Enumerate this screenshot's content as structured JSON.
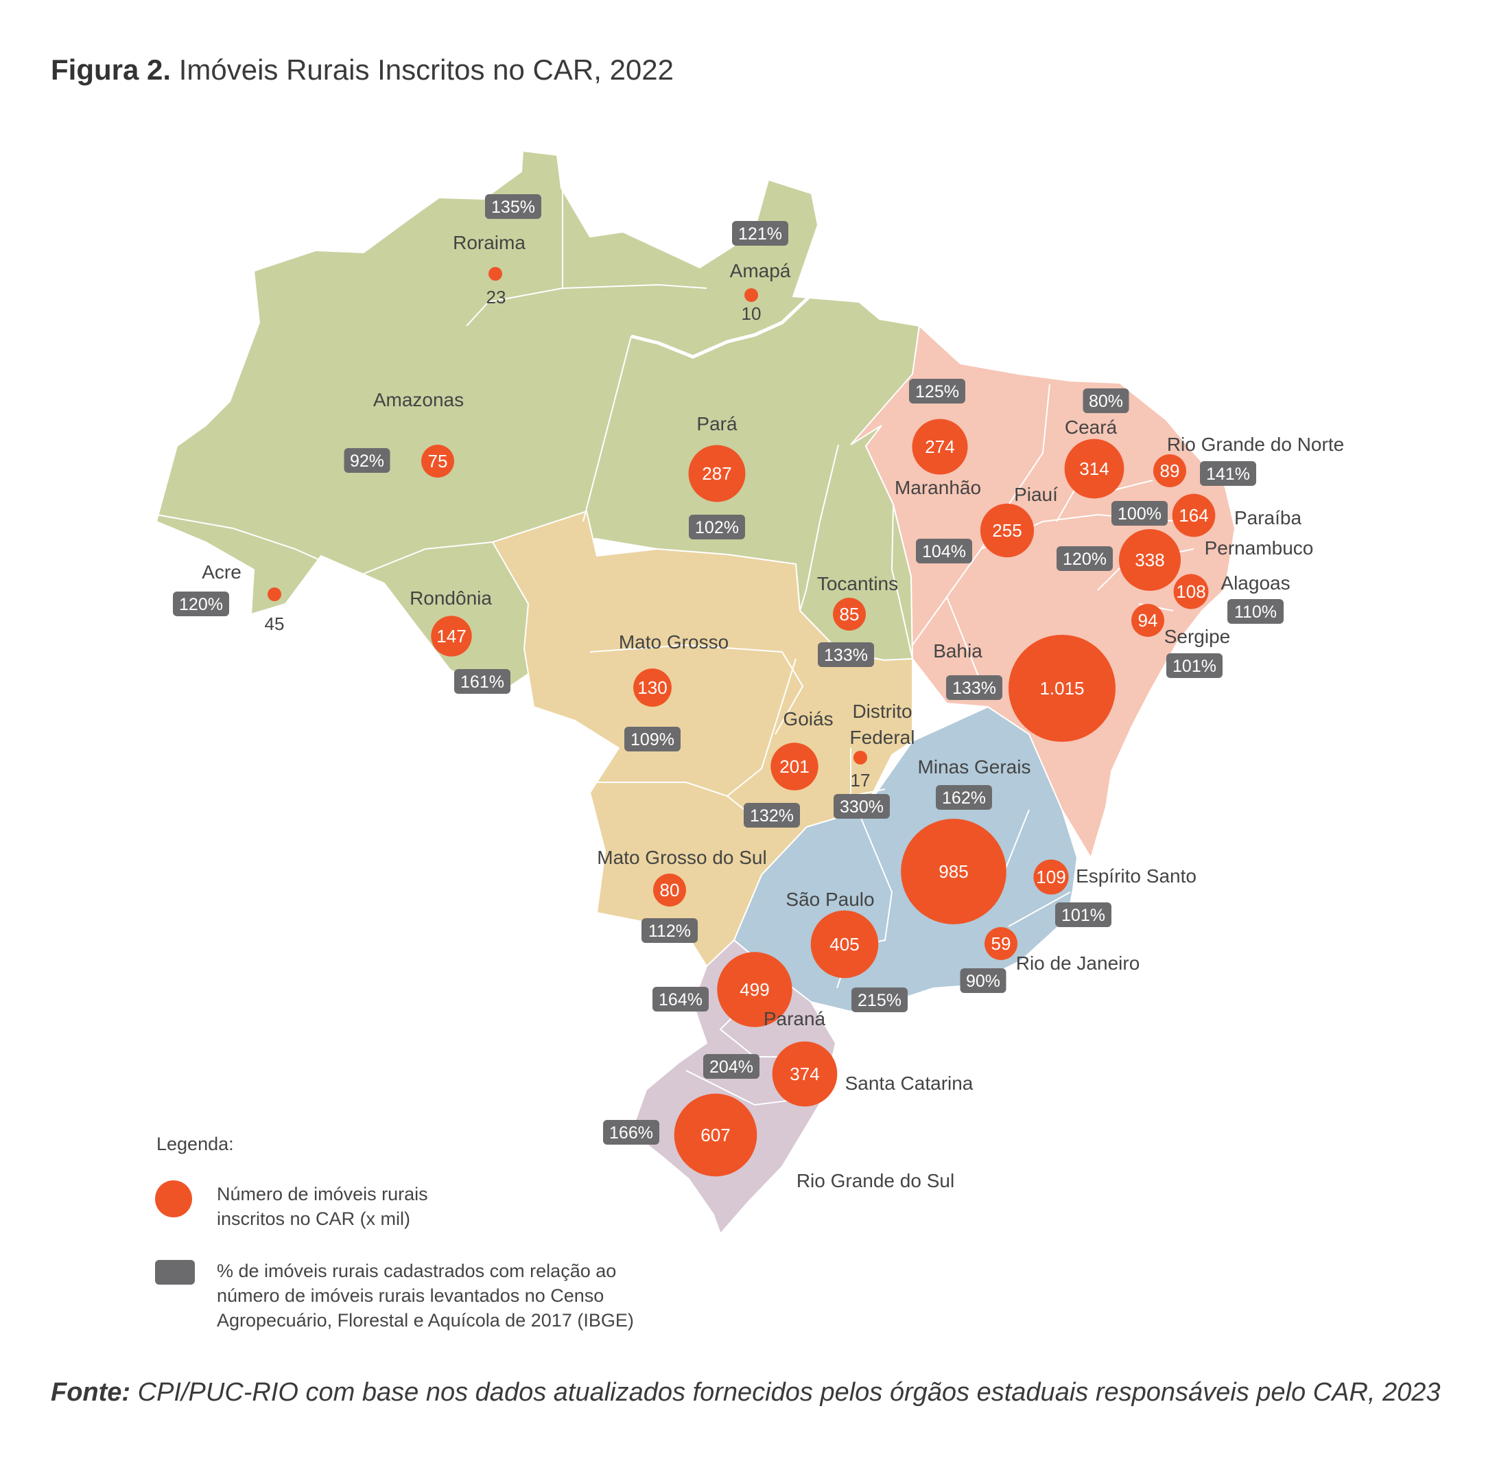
{
  "title": {
    "prefix": "Figura 2.",
    "text": "Imóveis Rurais Inscritos no CAR, 2022"
  },
  "colors": {
    "north": "#c9d19f",
    "northeast": "#f6c6b6",
    "centerwest": "#ebd4a1",
    "southeast": "#b2cad9",
    "south": "#d7c8d3",
    "circle": "#ef5427",
    "badge": "#6b6b6d"
  },
  "states": [
    {
      "name": "Roraima",
      "value": "23",
      "percent": "135%"
    },
    {
      "name": "Amapá",
      "value": "10",
      "percent": "121%"
    },
    {
      "name": "Amazonas",
      "value": "75",
      "percent": "92%"
    },
    {
      "name": "Pará",
      "value": "287",
      "percent": "102%"
    },
    {
      "name": "Acre",
      "value": "45",
      "percent": "120%"
    },
    {
      "name": "Rondônia",
      "value": "147",
      "percent": "161%"
    },
    {
      "name": "Tocantins",
      "value": "85",
      "percent": "133%"
    },
    {
      "name": "Maranhão",
      "value": "274",
      "percent": "125%"
    },
    {
      "name": "Ceará",
      "value": "314",
      "percent": "80%"
    },
    {
      "name": "Rio Grande do Norte",
      "value": "89",
      "percent": "141%"
    },
    {
      "name": "Paraíba",
      "value": "164",
      "percent": "100%"
    },
    {
      "name": "Piauí",
      "value": "255",
      "percent": "104%"
    },
    {
      "name": "Pernambuco",
      "value": "338",
      "percent": "120%"
    },
    {
      "name": "Alagoas",
      "value": "108",
      "percent": "110%"
    },
    {
      "name": "Sergipe",
      "value": "94",
      "percent": "101%"
    },
    {
      "name": "Bahia",
      "value": "1.015",
      "percent": "133%"
    },
    {
      "name": "Mato Grosso",
      "value": "130",
      "percent": "109%"
    },
    {
      "name": "Goiás",
      "value": "201",
      "percent": "132%"
    },
    {
      "name": "Distrito Federal",
      "value": "17",
      "percent": "330%"
    },
    {
      "name": "Minas Gerais",
      "value": "985",
      "percent": "162%"
    },
    {
      "name": "Espírito Santo",
      "value": "109",
      "percent": "101%"
    },
    {
      "name": "Mato Grosso do Sul",
      "value": "80",
      "percent": "112%"
    },
    {
      "name": "São Paulo",
      "value": "405",
      "percent": "215%"
    },
    {
      "name": "Rio de Janeiro",
      "value": "59",
      "percent": "90%"
    },
    {
      "name": "Paraná",
      "value": "499",
      "percent": "164%"
    },
    {
      "name": "Santa Catarina",
      "value": "374",
      "percent": "204%"
    },
    {
      "name": "Rio Grande do Sul",
      "value": "607",
      "percent": "166%"
    }
  ],
  "legend": {
    "title": "Legenda:",
    "circle_text": "Número de imóveis rurais\ninscritos no CAR (x mil)",
    "box_text": "% de imóveis rurais cadastrados com relação ao\nnúmero de imóveis rurais levantados no Censo\nAgropecuário, Florestal e Aquícola de 2017 (IBGE)"
  },
  "source": {
    "prefix": "Fonte:",
    "text": "CPI/PUC-RIO com base nos dados atualizados fornecidos pelos órgãos estaduais responsáveis pelo CAR, 2023"
  }
}
